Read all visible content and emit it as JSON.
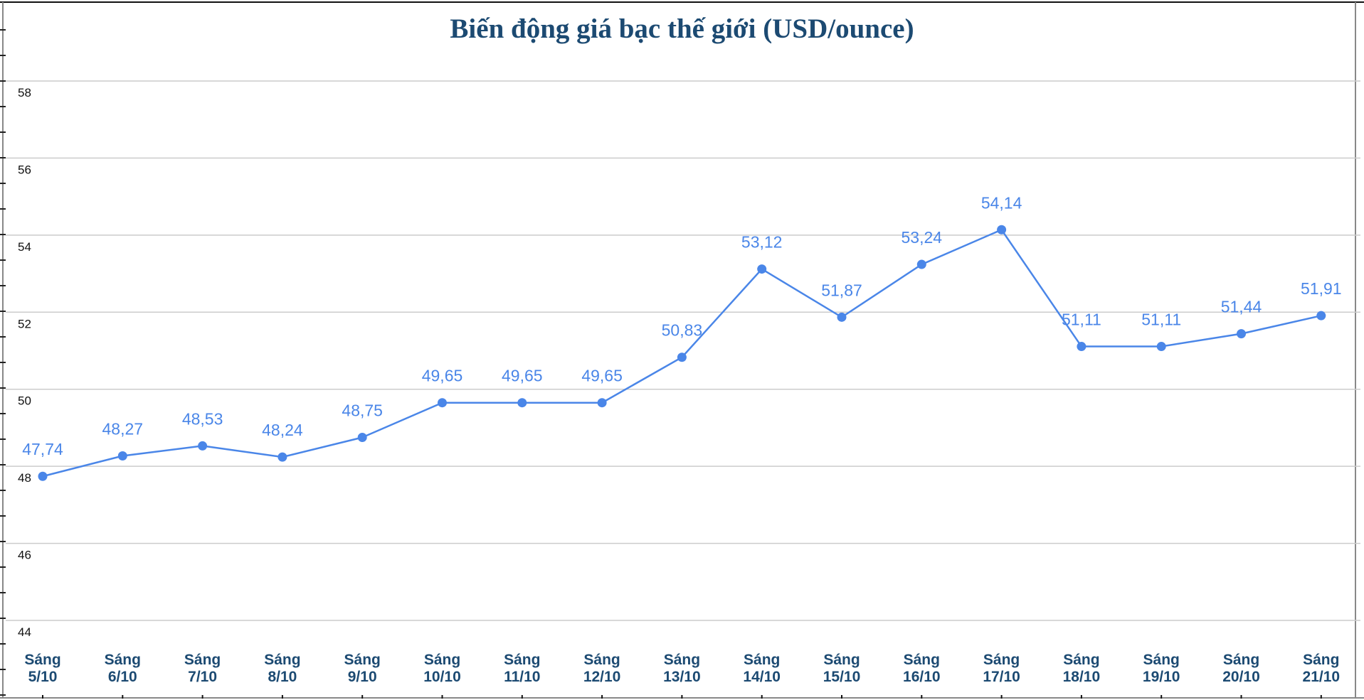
{
  "chart_data": {
    "type": "line",
    "title": "Biến động giá bạc thế giới (USD/ounce)",
    "xlabel": "",
    "ylabel": "",
    "ylim": [
      44,
      58
    ],
    "yticks": [
      44,
      46,
      48,
      50,
      52,
      54,
      56,
      58
    ],
    "grid": true,
    "categories": [
      [
        "Sáng",
        "5/10"
      ],
      [
        "Sáng",
        "6/10"
      ],
      [
        "Sáng",
        "7/10"
      ],
      [
        "Sáng",
        "8/10"
      ],
      [
        "Sáng",
        "9/10"
      ],
      [
        "Sáng",
        "10/10"
      ],
      [
        "Sáng",
        "11/10"
      ],
      [
        "Sáng",
        "12/10"
      ],
      [
        "Sáng",
        "13/10"
      ],
      [
        "Sáng",
        "14/10"
      ],
      [
        "Sáng",
        "15/10"
      ],
      [
        "Sáng",
        "16/10"
      ],
      [
        "Sáng",
        "17/10"
      ],
      [
        "Sáng",
        "18/10"
      ],
      [
        "Sáng",
        "19/10"
      ],
      [
        "Sáng",
        "20/10"
      ],
      [
        "Sáng",
        "21/10"
      ]
    ],
    "values": [
      47.74,
      48.27,
      48.53,
      48.24,
      48.75,
      49.65,
      49.65,
      49.65,
      50.83,
      53.12,
      51.87,
      53.24,
      54.14,
      51.11,
      51.11,
      51.44,
      51.91
    ],
    "data_labels": [
      "47,74",
      "48,27",
      "48,53",
      "48,24",
      "48,75",
      "49,65",
      "49,65",
      "49,65",
      "50,83",
      "53,12",
      "51,87",
      "53,24",
      "54,14",
      "51,11",
      "51,11",
      "51,44",
      "51,91"
    ],
    "colors": {
      "line": "#4a86e8",
      "label": "#4a86e8",
      "category": "#1c4a72",
      "grid": "#cccccc"
    }
  }
}
